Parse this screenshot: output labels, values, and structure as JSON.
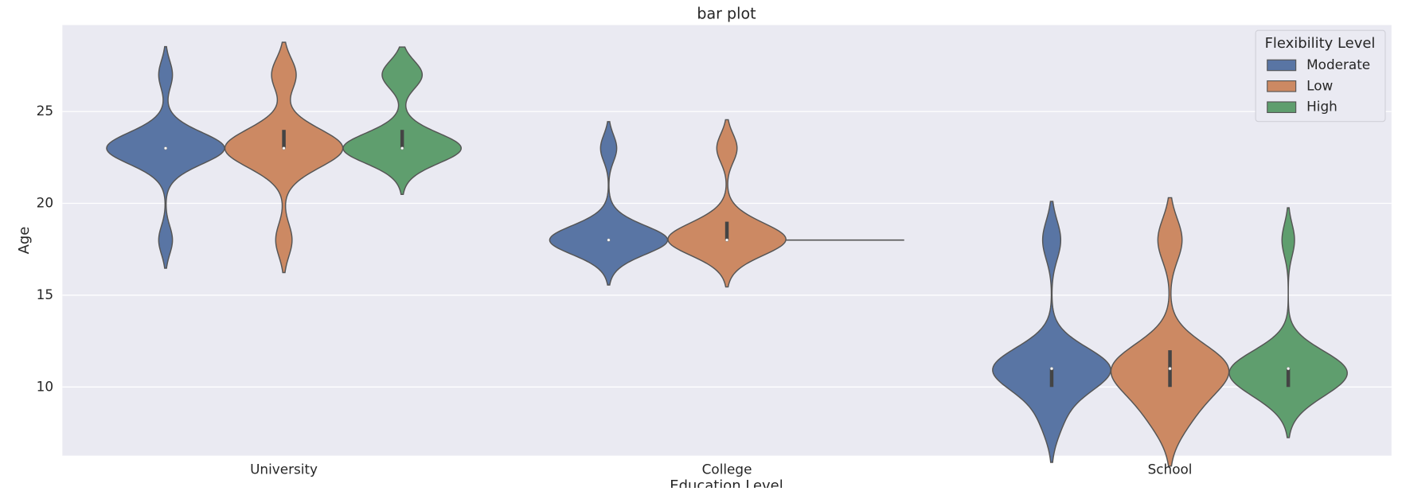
{
  "chart_data": {
    "type": "violin",
    "title": "bar plot",
    "xlabel": "Education Level",
    "ylabel": "Age",
    "categories": [
      "University",
      "College",
      "School"
    ],
    "legend_title": "Flexibility Level",
    "legend_position": "upper right",
    "grid": true,
    "ylim": [
      6.26,
      29.71
    ],
    "yticks": [
      10,
      15,
      20,
      25
    ],
    "series": [
      {
        "name": "Moderate",
        "color": "#5975a4",
        "violins": [
          {
            "ages": [
              18,
              22,
              23,
              24,
              27
            ],
            "counts": [
              8,
              10,
              60,
              10,
              8
            ]
          },
          {
            "ages": [
              17,
              18,
              19,
              23
            ],
            "counts": [
              5,
              40,
              5,
              6
            ]
          },
          {
            "ages": [
              8,
              9,
              10,
              11,
              12,
              18
            ],
            "counts": [
              6,
              4,
              10,
              40,
              8,
              8
            ]
          }
        ]
      },
      {
        "name": "Low",
        "color": "#cc8963",
        "violins": [
          {
            "ages": [
              18,
              22,
              23,
              24,
              27
            ],
            "counts": [
              8,
              12,
              45,
              12,
              12
            ]
          },
          {
            "ages": [
              17,
              18,
              19,
              23
            ],
            "counts": [
              5,
              35,
              8,
              7
            ]
          },
          {
            "ages": [
              8,
              9,
              10,
              11,
              12,
              18
            ],
            "counts": [
              8,
              8,
              12,
              30,
              12,
              10
            ]
          }
        ]
      },
      {
        "name": "High",
        "color": "#5f9e6e",
        "violins": [
          {
            "ages": [
              22,
              23,
              24,
              27
            ],
            "counts": [
              5,
              40,
              5,
              15
            ]
          },
          {
            "ages": [
              18
            ],
            "counts": [
              1
            ]
          },
          {
            "ages": [
              9,
              10,
              11,
              12,
              18
            ],
            "counts": [
              5,
              20,
              30,
              10,
              5
            ]
          }
        ]
      }
    ]
  }
}
